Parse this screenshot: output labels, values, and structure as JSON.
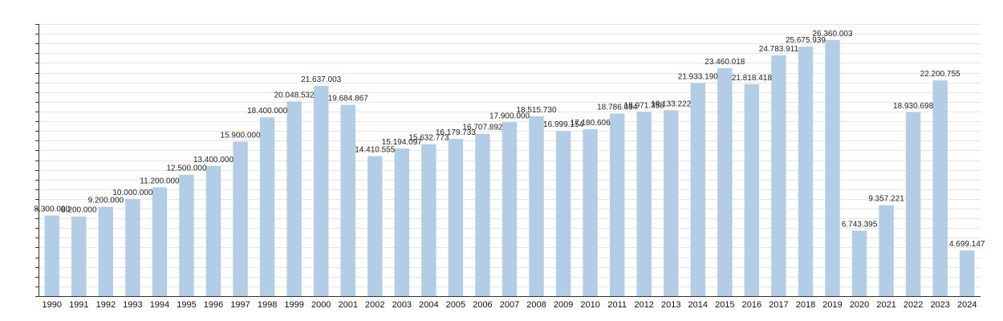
{
  "chart_data": {
    "type": "bar",
    "title": "",
    "xlabel": "",
    "ylabel": "",
    "ylim": [
      0,
      28000000
    ],
    "grid": true,
    "legend": "none",
    "colors": {
      "bar": "#b4cde6",
      "axis": "#333333",
      "grid": "#e6e6e6"
    },
    "categories": [
      "1990",
      "1991",
      "1992",
      "1993",
      "1994",
      "1995",
      "1996",
      "1997",
      "1998",
      "1999",
      "2000",
      "2001",
      "2002",
      "2003",
      "2004",
      "2005",
      "2006",
      "2007",
      "2008",
      "2009",
      "2010",
      "2011",
      "2012",
      "2013",
      "2014",
      "2015",
      "2016",
      "2017",
      "2018",
      "2019",
      "2020",
      "2021",
      "2022",
      "2023",
      "2024"
    ],
    "values": [
      8300000,
      8200000,
      9200000,
      10000000,
      11200000,
      12500000,
      13400000,
      15900000,
      18400000,
      20048532,
      21637003,
      19684867,
      14410555,
      15194097,
      15632773,
      16179733,
      16707892,
      17900000,
      18515730,
      16999154,
      17180606,
      18786034,
      18971358,
      19133222,
      21933190,
      23460018,
      21818418,
      24783911,
      25675939,
      26360003,
      6743395,
      9357221,
      18930698,
      22200755,
      4699147
    ],
    "data_labels": [
      "8.300.000",
      "8.200.000",
      "9.200.000",
      "10.000.000",
      "11.200.000",
      "12.500.000",
      "13.400.000",
      "15.900.000",
      "18.400.000",
      "20.048.532",
      "21.637.003",
      "19.684.867",
      "14.410.555",
      "15.194.097",
      "15.632.773",
      "16.179.733",
      "16.707.892",
      "17.900.000",
      "18.515.730",
      "16.999.154",
      "17.180.606",
      "18.786.034",
      "18.971.358",
      "19.133.222",
      "21.933.190",
      "23.460.018",
      "21.818.418",
      "24.783.911",
      "25.675.939",
      "26.360.003",
      "6.743.395",
      "9.357.221",
      "18.930.698",
      "22.200.755",
      "4.699.147"
    ]
  }
}
